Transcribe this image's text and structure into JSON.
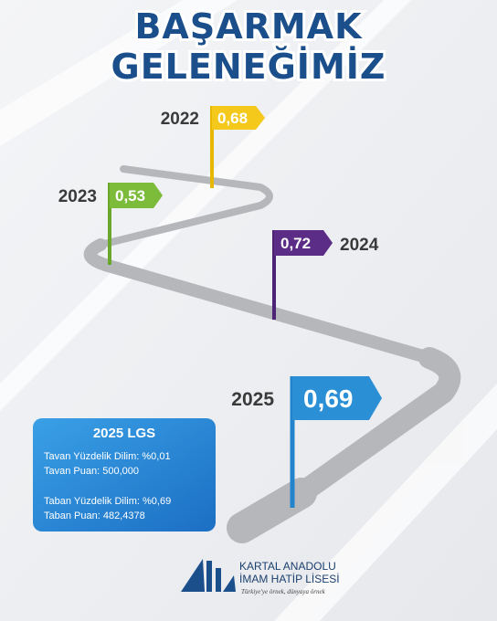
{
  "header": {
    "title_line1": "BAŞARMAK",
    "title_line2": "GELENEĞİMİZ"
  },
  "flags": [
    {
      "year": "2022",
      "value": "0,68"
    },
    {
      "year": "2023",
      "value": "0,53"
    },
    {
      "year": "2024",
      "value": "0,72"
    },
    {
      "year": "2025",
      "value": "0,69"
    }
  ],
  "info_box": {
    "title": "2025 LGS",
    "lines": [
      "Tavan Yüzdelik Dilim: %0,01",
      "Tavan Puan: 500,000",
      "Taban Yüzdelik Dilim: %0,69",
      "Taban Puan: 482,4378"
    ]
  },
  "logo": {
    "line1": "KARTAL ANADOLU",
    "line2": "İMAM HATİP LİSESİ",
    "slogan": "Türkiye'ye örnek, dünyaya örnek"
  }
}
